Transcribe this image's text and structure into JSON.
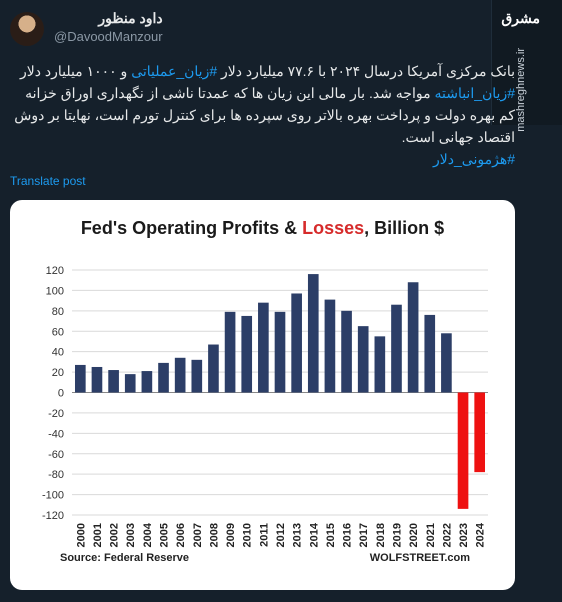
{
  "author": {
    "display_name": "داود منظور",
    "handle": "@DavoodManzour"
  },
  "brand": {
    "logo": "مشرق",
    "url": "mashreghnews.ir"
  },
  "post": {
    "text_pre": "بانک مرکزی آمریکا درسال ۲۰۲۴ با ۷۷.۶ میلیارد دلار ",
    "tag_1": "#زیان_عملیاتی",
    "text_mid": " و ۱۰۰۰ میلیارد دلار ",
    "tag_2": "#زیان_انباشته",
    "text_post": " مواجه شد. بار مالی این زیان ها که عمدتا ناشی از نگهداری اوراق خزانه کم بهره دولت و پرداخت بهره بالاتر روی سپرده ها برای کنترل تورم است، نهایتا بر دوش اقتصاد جهانی است.",
    "tag_3": "#هژمونی_دلار",
    "translate_label": "Translate post"
  },
  "chart_data": {
    "type": "bar",
    "title_prefix": "Fed's Operating Profits & ",
    "title_red": "Losses",
    "title_suffix": ", Billion $",
    "categories": [
      "2000",
      "2001",
      "2002",
      "2003",
      "2004",
      "2005",
      "2006",
      "2007",
      "2008",
      "2009",
      "2010",
      "2011",
      "2012",
      "2013",
      "2014",
      "2015",
      "2016",
      "2017",
      "2018",
      "2019",
      "2020",
      "2021",
      "2022",
      "2023",
      "2024"
    ],
    "values": [
      27,
      25,
      22,
      18,
      21,
      29,
      34,
      32,
      47,
      79,
      75,
      88,
      79,
      97,
      116,
      91,
      80,
      65,
      55,
      86,
      108,
      76,
      58,
      -114,
      -78
    ],
    "ylim": [
      -120,
      120
    ],
    "yticks": [
      -120,
      -100,
      -80,
      -60,
      -40,
      -20,
      0,
      20,
      40,
      60,
      80,
      100,
      120
    ],
    "colors": {
      "positive": "#2c3e67",
      "negative": "#ee1111"
    },
    "grid": true,
    "source": "Source: Federal Reserve",
    "credit": "WOLFSTREET.com"
  }
}
